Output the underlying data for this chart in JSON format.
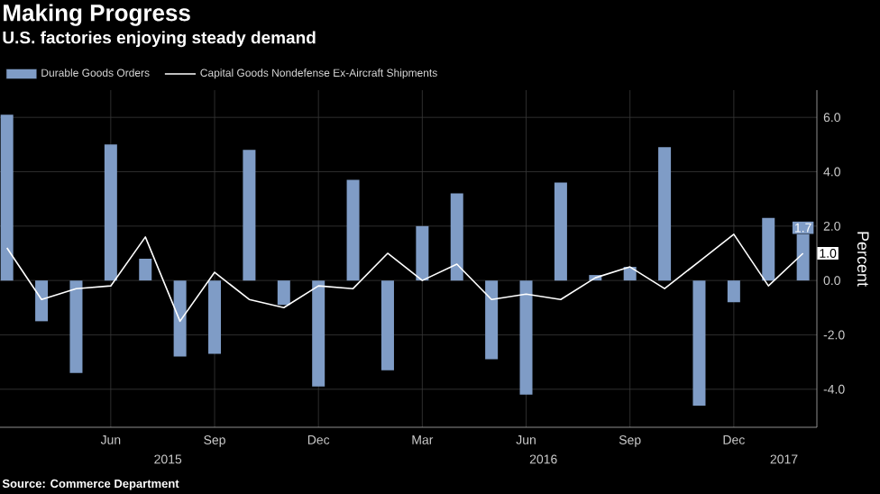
{
  "chart_data": {
    "type": "bar",
    "title": "Making Progress",
    "subtitle": "U.S. factories enjoying steady demand",
    "ylabel": "Percent",
    "x": [
      "2015-03",
      "2015-04",
      "2015-05",
      "2015-06",
      "2015-07",
      "2015-08",
      "2015-09",
      "2015-10",
      "2015-11",
      "2015-12",
      "2016-01",
      "2016-02",
      "2016-03",
      "2016-04",
      "2016-05",
      "2016-06",
      "2016-07",
      "2016-08",
      "2016-09",
      "2016-10",
      "2016-11",
      "2016-12",
      "2017-01",
      "2017-02"
    ],
    "series": [
      {
        "name": "Durable Goods Orders",
        "color": "#7f9cc6",
        "values": [
          6.1,
          -1.5,
          -3.4,
          5.0,
          0.8,
          -2.8,
          -2.7,
          4.8,
          -0.9,
          -3.9,
          3.7,
          -3.3,
          2.0,
          3.2,
          -2.9,
          -4.2,
          3.6,
          0.2,
          0.5,
          4.9,
          -4.6,
          -0.8,
          2.3,
          1.7
        ],
        "value_labels": [
          null,
          null,
          null,
          null,
          null,
          null,
          null,
          null,
          null,
          null,
          null,
          null,
          null,
          null,
          null,
          null,
          null,
          null,
          null,
          null,
          null,
          null,
          null,
          "1.7"
        ]
      },
      {
        "name": "Capital Goods Nondefense Ex-Aircraft Shipments",
        "type": "line",
        "color": "#ffffff",
        "values": [
          1.2,
          -0.7,
          -0.3,
          -0.2,
          1.6,
          -1.5,
          0.3,
          -0.7,
          -1.0,
          -0.2,
          -0.3,
          1.0,
          0.0,
          0.6,
          -0.7,
          -0.5,
          -0.7,
          0.1,
          0.5,
          -0.3,
          0.7,
          1.7,
          -0.2,
          1.0
        ],
        "value_labels": [
          null,
          null,
          null,
          null,
          null,
          null,
          null,
          null,
          null,
          null,
          null,
          null,
          null,
          null,
          null,
          null,
          null,
          null,
          null,
          null,
          null,
          null,
          null,
          "1.0"
        ]
      }
    ],
    "xlim": [
      "2015-02-25",
      "2017-02-13"
    ],
    "xticks": [
      {
        "value": "2015-06",
        "label": "Jun"
      },
      {
        "value": "2015-09",
        "label": "Sep"
      },
      {
        "value": "2015-12",
        "label": "Dec"
      },
      {
        "value": "2016-03",
        "label": "Mar"
      },
      {
        "value": "2016-06",
        "label": "Jun"
      },
      {
        "value": "2016-09",
        "label": "Sep"
      },
      {
        "value": "2016-12",
        "label": "Dec"
      }
    ],
    "ylim": [
      -5.4,
      7.0
    ],
    "yticks": [
      {
        "value": -4,
        "label": "-4.0"
      },
      {
        "value": -2,
        "label": "-2.0"
      },
      {
        "value": 0,
        "label": "0.0"
      },
      {
        "value": 2,
        "label": "2.0"
      },
      {
        "value": 4,
        "label": "4.0"
      },
      {
        "value": 6,
        "label": "6.0"
      }
    ],
    "grid": true,
    "legend": "top left",
    "annotations": [
      "2015",
      "2016",
      "2017",
      "Source: Commerce Department"
    ]
  }
}
